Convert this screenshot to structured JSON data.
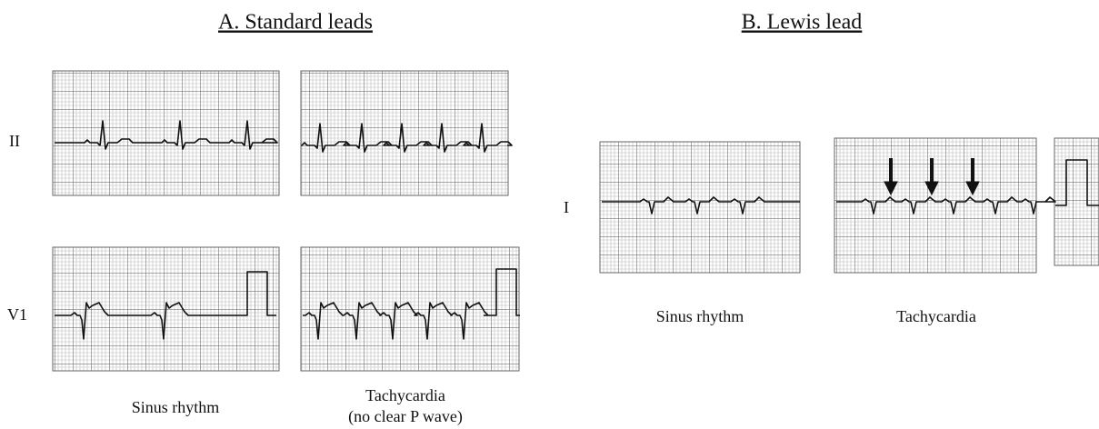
{
  "panel_a": {
    "title": "A. Standard leads",
    "leads": [
      "II",
      "V1"
    ],
    "captions": {
      "sinus": "Sinus rhythm",
      "tachycardia": [
        "Tachycardia",
        "(no clear P wave)"
      ]
    }
  },
  "panel_b": {
    "title": "B. Lewis lead",
    "lead": "I",
    "captions": {
      "sinus": "Sinus rhythm",
      "tachycardia": "Tachycardia"
    }
  }
}
